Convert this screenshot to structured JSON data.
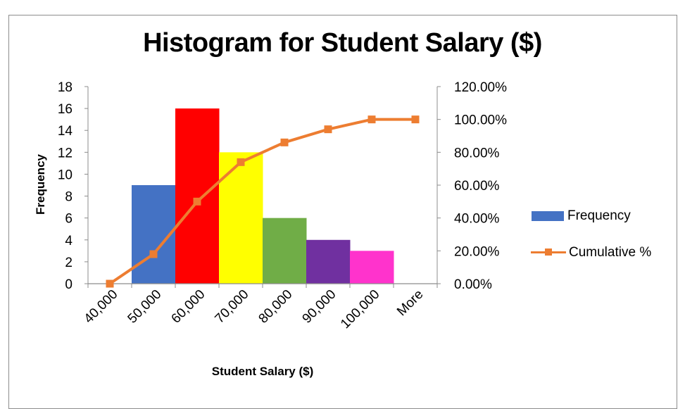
{
  "chart_data": {
    "type": "bar",
    "title": "Histogram for Student Salary ($)",
    "xlabel": "Student Salary ($)",
    "ylabel": "Frequency",
    "y2label": "",
    "categories": [
      "40,000",
      "50,000",
      "60,000",
      "70,000",
      "80,000",
      "90,000",
      "100,000",
      "More"
    ],
    "series": [
      {
        "name": "Frequency",
        "type": "bar",
        "axis": "left",
        "values": [
          0,
          9,
          16,
          12,
          6,
          4,
          3,
          0
        ],
        "colors": [
          "#4472C4",
          "#4472C4",
          "#FF0000",
          "#FFFF00",
          "#70AD47",
          "#7030A0",
          "#FF33CC",
          "#4472C4"
        ]
      },
      {
        "name": "Cumulative %",
        "type": "line",
        "axis": "right",
        "values": [
          0,
          18,
          50,
          74,
          86,
          94,
          100,
          100
        ],
        "color": "#ED7D31",
        "marker": "square"
      }
    ],
    "ylim": [
      0,
      18
    ],
    "yticks": [
      "0",
      "2",
      "4",
      "6",
      "8",
      "10",
      "12",
      "14",
      "16",
      "18"
    ],
    "y2lim": [
      0,
      120
    ],
    "y2ticks": [
      "0.00%",
      "20.00%",
      "40.00%",
      "60.00%",
      "80.00%",
      "100.00%",
      "120.00%"
    ],
    "grid": false,
    "legend_position": "right"
  },
  "legend": {
    "items": [
      {
        "label": "Frequency",
        "color": "#4472C4",
        "kind": "bar"
      },
      {
        "label": "Cumulative %",
        "color": "#ED7D31",
        "kind": "line"
      }
    ]
  }
}
